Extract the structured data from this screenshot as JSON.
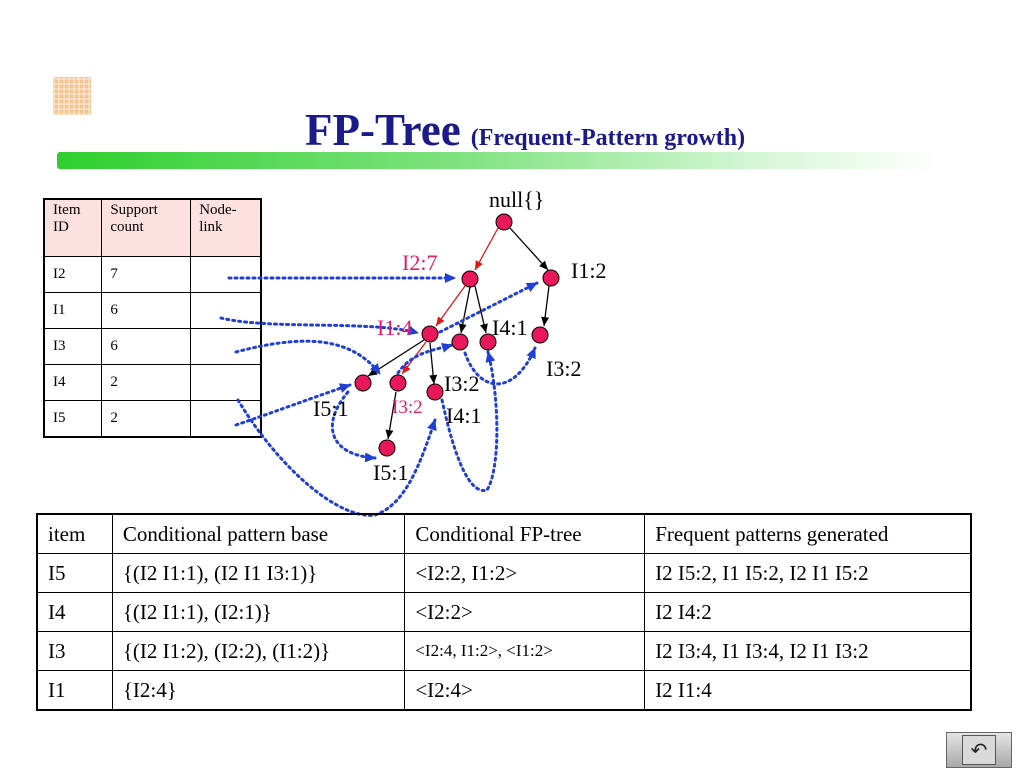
{
  "title": {
    "main": "FP-Tree",
    "sub": "(Frequent-Pattern growth)"
  },
  "header_table": {
    "columns": [
      "Item ID",
      "Support count",
      "Node-link"
    ],
    "rows": [
      {
        "item": "I2",
        "count": "7"
      },
      {
        "item": "I1",
        "count": "6"
      },
      {
        "item": "I3",
        "count": "6"
      },
      {
        "item": "I4",
        "count": "2"
      },
      {
        "item": "I5",
        "count": "2"
      }
    ]
  },
  "tree": {
    "nodes": {
      "root": "null{}",
      "i2": "I2:7",
      "i1_top": "I1:2",
      "i1": "I1:4",
      "i4_a": "I4:1",
      "i3_right": "I3:2",
      "i3_a": "I3:2",
      "i3_b": "I3:2",
      "i4_b": "I4:1",
      "i5_a": "I5:1",
      "i5_b": "I5:1"
    }
  },
  "pattern_table": {
    "columns": [
      "item",
      "Conditional pattern base",
      "Conditional FP-tree",
      "Frequent patterns generated"
    ],
    "rows": [
      [
        "I5",
        "{(I2 I1:1), (I2 I1 I3:1)}",
        "<I2:2, I1:2>",
        "I2 I5:2, I1 I5:2, I2 I1 I5:2"
      ],
      [
        "I4",
        "{(I2 I1:1), (I2:1)}",
        "<I2:2>",
        "I2 I4:2"
      ],
      [
        "I3",
        "{(I2 I1:2), (I2:2), (I1:2)}",
        "<I2:4, I1:2>, <I1:2>",
        "I2 I3:4, I1 I3:4, I2 I1 I3:2"
      ],
      [
        "I1",
        "{I2:4}",
        "<I2:4>",
        "I2 I1:4"
      ]
    ]
  },
  "nav": {
    "icon": "return-icon"
  },
  "colors": {
    "title": "#1a1a8c",
    "node": "#e8185b",
    "link_arrow": "#1f3fd6",
    "highlight_label": "#e8186b"
  }
}
